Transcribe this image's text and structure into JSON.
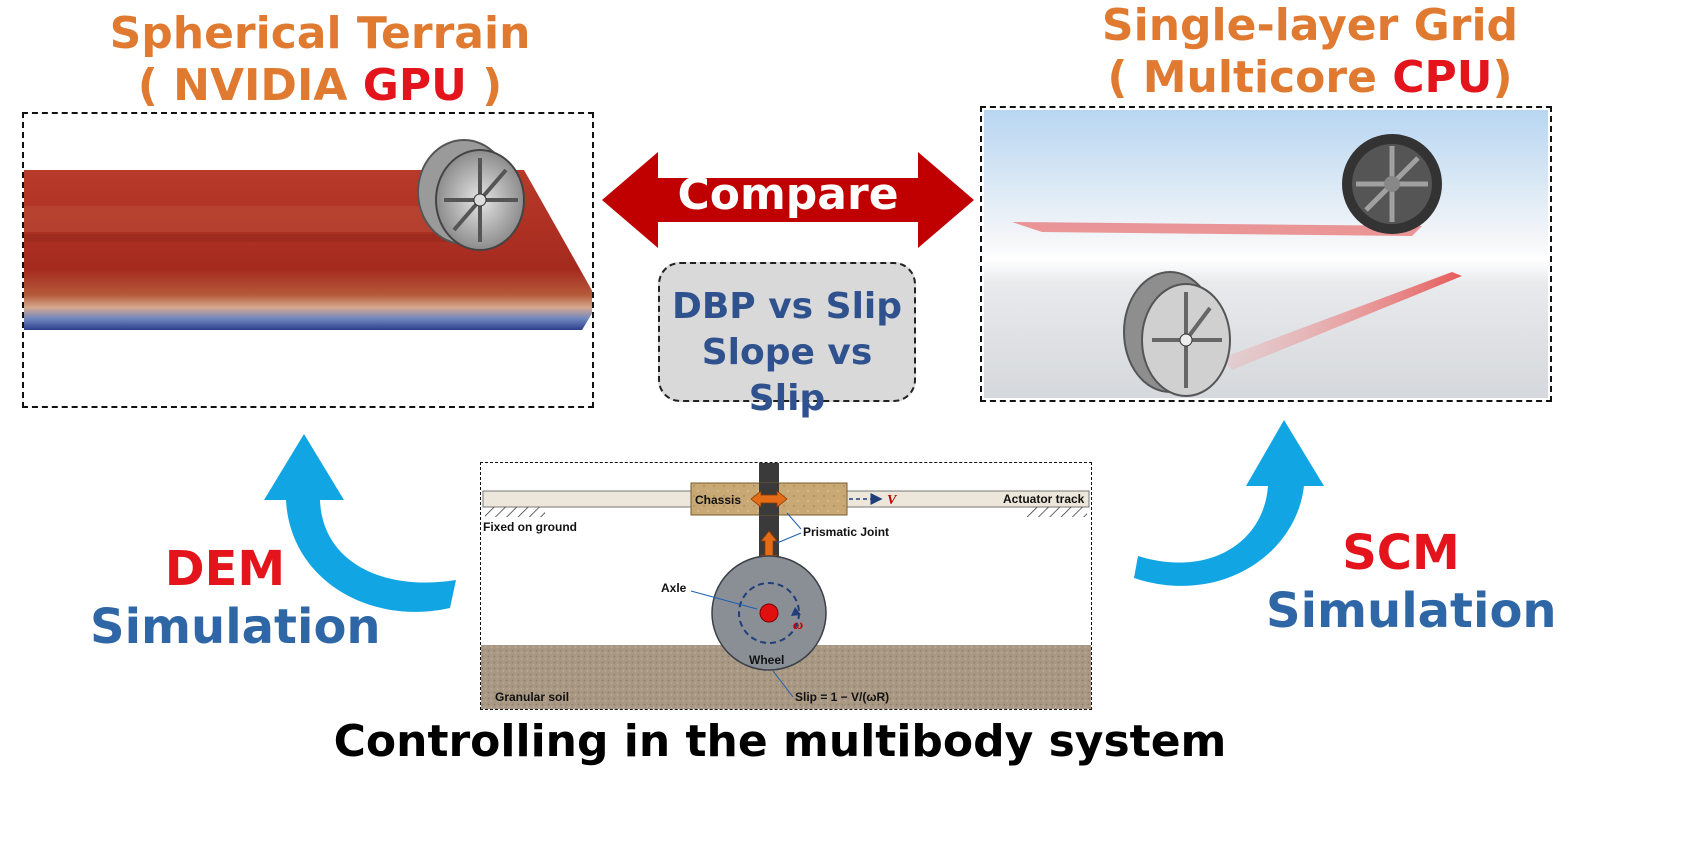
{
  "left_title": {
    "line1": "Spherical Terrain",
    "pre": "( NVIDIA ",
    "accent": "GPU",
    "post": " )"
  },
  "right_title": {
    "line1": "Single-layer Grid",
    "pre": "( Multicore ",
    "accent": "CPU",
    "post": ")"
  },
  "compare": {
    "label": "Compare"
  },
  "comparison_box": {
    "line1": "DBP vs Slip",
    "line2": "Slope vs Slip"
  },
  "left_method": {
    "name": "DEM",
    "word": "Simulation"
  },
  "right_method": {
    "name": "SCM",
    "word": "Simulation"
  },
  "schematic": {
    "chassis": "Chassis",
    "velocity": "V",
    "actuator_track": "Actuator track",
    "fixed_on_ground": "Fixed on ground",
    "prismatic_joint": "Prismatic Joint",
    "axle": "Axle",
    "omega": "ω",
    "wheel": "Wheel",
    "granular_soil": "Granular soil",
    "slip_formula": "Slip = 1 − V/(ωR)"
  },
  "caption": "Controlling in the multibody system",
  "colors": {
    "title_orange": "#E07A30",
    "accent_red": "#E3141B",
    "label_blue": "#2F67A6",
    "arrow_red": "#C00000",
    "cycle_blue": "#12A5E4"
  }
}
